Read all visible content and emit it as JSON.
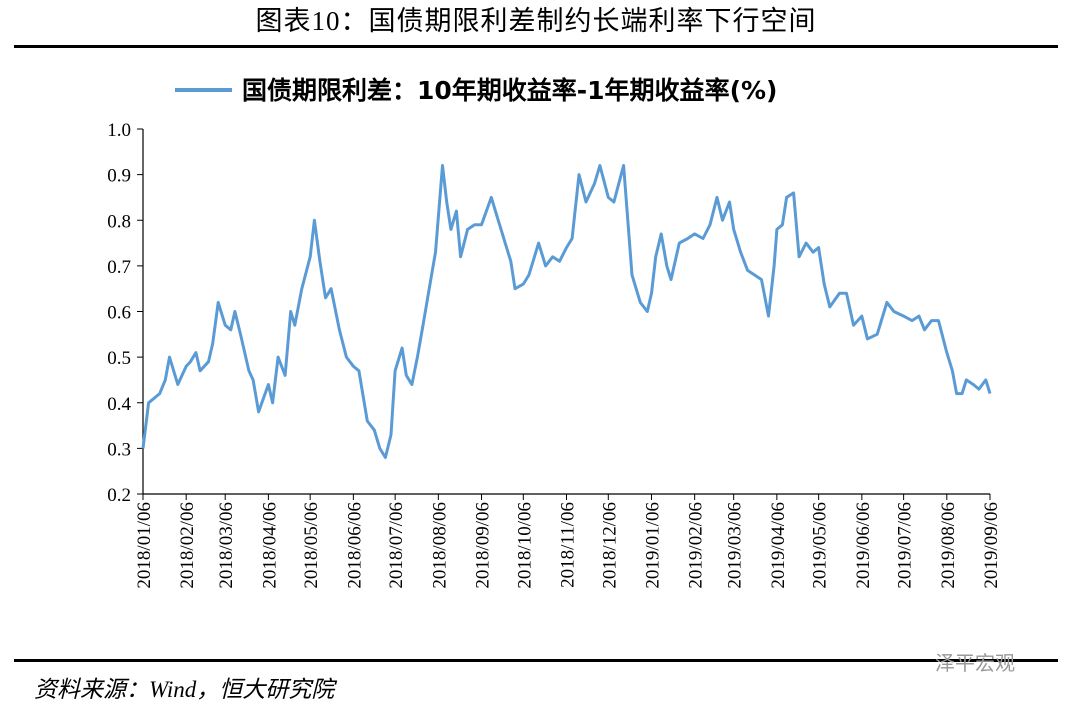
{
  "chart_data": {
    "type": "line",
    "title": "图表10：国债期限利差制约长端利率下行空间",
    "source": "资料来源：Wind，恒大研究院",
    "watermark": "泽平宏观",
    "x": [
      "2018/01/06",
      "2018/01/10",
      "2018/01/18",
      "2018/01/22",
      "2018/01/25",
      "2018/01/31",
      "2018/02/06",
      "2018/02/09",
      "2018/02/13",
      "2018/02/16",
      "2018/02/22",
      "2018/02/25",
      "2018/03/01",
      "2018/03/06",
      "2018/03/10",
      "2018/03/13",
      "2018/03/17",
      "2018/03/23",
      "2018/03/26",
      "2018/03/30",
      "2018/04/06",
      "2018/04/09",
      "2018/04/13",
      "2018/04/18",
      "2018/04/22",
      "2018/04/25",
      "2018/04/30",
      "2018/05/06",
      "2018/05/09",
      "2018/05/13",
      "2018/05/17",
      "2018/05/21",
      "2018/05/27",
      "2018/06/01",
      "2018/06/06",
      "2018/06/10",
      "2018/06/16",
      "2018/06/21",
      "2018/06/25",
      "2018/06/29",
      "2018/07/03",
      "2018/07/06",
      "2018/07/11",
      "2018/07/14",
      "2018/07/18",
      "2018/07/22",
      "2018/07/26",
      "2018/07/31",
      "2018/08/04",
      "2018/08/09",
      "2018/08/12",
      "2018/08/15",
      "2018/08/19",
      "2018/08/22",
      "2018/08/27",
      "2018/09/01",
      "2018/09/06",
      "2018/09/13",
      "2018/09/18",
      "2018/09/23",
      "2018/09/27",
      "2018/09/30",
      "2018/10/06",
      "2018/10/10",
      "2018/10/17",
      "2018/10/22",
      "2018/10/27",
      "2018/11/01",
      "2018/11/06",
      "2018/11/10",
      "2018/11/15",
      "2018/11/20",
      "2018/11/26",
      "2018/11/30",
      "2018/12/06",
      "2018/12/10",
      "2018/12/17",
      "2018/12/23",
      "2018/12/29",
      "2019/01/03",
      "2019/01/06",
      "2019/01/09",
      "2019/01/13",
      "2019/01/17",
      "2019/01/20",
      "2019/01/26",
      "2019/02/01",
      "2019/02/06",
      "2019/02/12",
      "2019/02/17",
      "2019/02/22",
      "2019/02/26",
      "2019/03/03",
      "2019/03/06",
      "2019/03/11",
      "2019/03/16",
      "2019/03/21",
      "2019/03/26",
      "2019/03/31",
      "2019/04/04",
      "2019/04/06",
      "2019/04/10",
      "2019/04/13",
      "2019/04/18",
      "2019/04/22",
      "2019/04/27",
      "2019/05/02",
      "2019/05/06",
      "2019/05/10",
      "2019/05/14",
      "2019/05/21",
      "2019/05/26",
      "2019/05/31",
      "2019/06/06",
      "2019/06/10",
      "2019/06/17",
      "2019/06/24",
      "2019/06/29",
      "2019/07/06",
      "2019/07/12",
      "2019/07/17",
      "2019/07/21",
      "2019/07/26",
      "2019/07/31",
      "2019/08/06",
      "2019/08/10",
      "2019/08/13",
      "2019/08/17",
      "2019/08/20",
      "2019/08/25",
      "2019/08/29",
      "2019/09/03",
      "2019/09/06"
    ],
    "series": [
      {
        "name": "国债期限利差：10年期收益率-1年期收益率(%)",
        "color": "#5b9bd5",
        "values": [
          0.3,
          0.4,
          0.42,
          0.45,
          0.5,
          0.44,
          0.48,
          0.49,
          0.51,
          0.47,
          0.49,
          0.53,
          0.62,
          0.57,
          0.56,
          0.6,
          0.55,
          0.47,
          0.45,
          0.38,
          0.44,
          0.4,
          0.5,
          0.46,
          0.6,
          0.57,
          0.65,
          0.72,
          0.8,
          0.71,
          0.63,
          0.65,
          0.56,
          0.5,
          0.48,
          0.47,
          0.36,
          0.34,
          0.3,
          0.28,
          0.33,
          0.47,
          0.52,
          0.46,
          0.44,
          0.5,
          0.57,
          0.66,
          0.73,
          0.92,
          0.84,
          0.78,
          0.82,
          0.72,
          0.78,
          0.79,
          0.79,
          0.85,
          0.8,
          0.75,
          0.71,
          0.65,
          0.66,
          0.68,
          0.75,
          0.7,
          0.72,
          0.71,
          0.74,
          0.76,
          0.9,
          0.84,
          0.88,
          0.92,
          0.85,
          0.84,
          0.92,
          0.68,
          0.62,
          0.6,
          0.64,
          0.72,
          0.77,
          0.7,
          0.67,
          0.75,
          0.76,
          0.77,
          0.76,
          0.79,
          0.85,
          0.8,
          0.84,
          0.78,
          0.73,
          0.69,
          0.68,
          0.67,
          0.59,
          0.7,
          0.78,
          0.79,
          0.85,
          0.86,
          0.72,
          0.75,
          0.73,
          0.74,
          0.66,
          0.61,
          0.64,
          0.64,
          0.57,
          0.59,
          0.54,
          0.55,
          0.62,
          0.6,
          0.59,
          0.58,
          0.59,
          0.56,
          0.58,
          0.58,
          0.51,
          0.47,
          0.42,
          0.42,
          0.45,
          0.44,
          0.43,
          0.45,
          0.42
        ]
      }
    ],
    "xlim": [
      "2018/01/06",
      "2019/09/06"
    ],
    "xticks": [
      "2018/01/06",
      "2018/02/06",
      "2018/03/06",
      "2018/04/06",
      "2018/05/06",
      "2018/06/06",
      "2018/07/06",
      "2018/08/06",
      "2018/09/06",
      "2018/10/06",
      "2018/11/06",
      "2018/12/06",
      "2019/01/06",
      "2019/02/06",
      "2019/03/06",
      "2019/04/06",
      "2019/05/06",
      "2019/06/06",
      "2019/07/06",
      "2019/08/06",
      "2019/09/06"
    ],
    "ylim": [
      0.2,
      1.0
    ],
    "yticks": [
      0.2,
      0.3,
      0.4,
      0.5,
      0.6,
      0.7,
      0.8,
      0.9,
      {
        "value": 1.0,
        "label": "1.0"
      }
    ]
  }
}
